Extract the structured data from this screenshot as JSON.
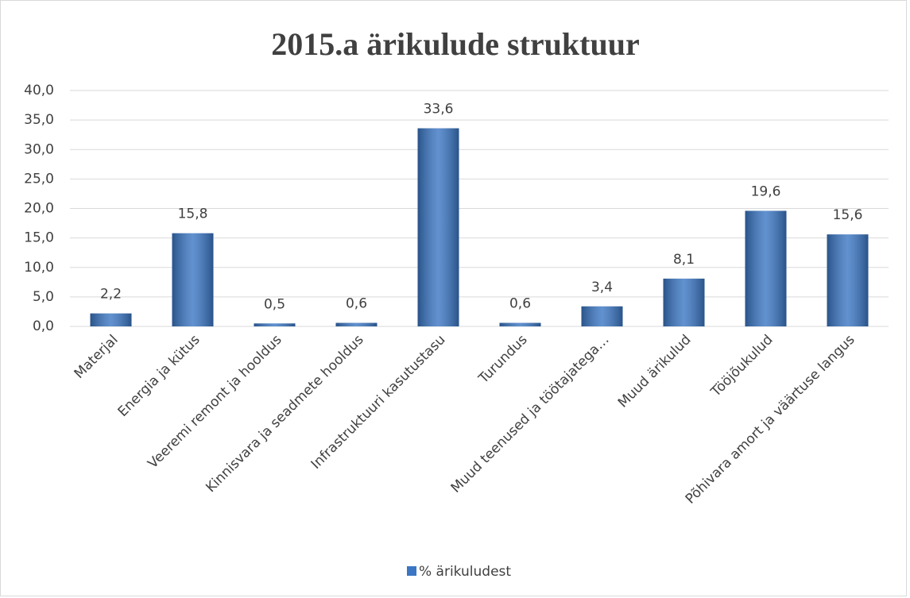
{
  "chart_data": {
    "type": "bar",
    "title": "2015.a ärikulude struktuur",
    "categories": [
      "Materjal",
      "Energia ja kütus",
      "Veeremi remont ja hooldus",
      "Kinnisvara ja seadmete hooldus",
      "Infrastruktuuri kasutustasu",
      "Turundus",
      "Muud teenused ja töötajatega…",
      "Muud ärikulud",
      "Tööjõukulud",
      "Põhivara amort ja väärtuse langus"
    ],
    "series": [
      {
        "name": "% ärikuludest",
        "color": "#3a76c4",
        "values": [
          2.2,
          15.8,
          0.5,
          0.6,
          33.6,
          0.6,
          3.4,
          8.1,
          19.6,
          15.6
        ],
        "value_labels": [
          "2,2",
          "15,8",
          "0,5",
          "0,6",
          "33,6",
          "0,6",
          "3,4",
          "8,1",
          "19,6",
          "15,6"
        ]
      }
    ],
    "ylim": [
      0,
      40
    ],
    "yticks": [
      {
        "value": 0,
        "label": "0,0"
      },
      {
        "value": 5,
        "label": "5,0"
      },
      {
        "value": 10,
        "label": "10,0"
      },
      {
        "value": 15,
        "label": "15,0"
      },
      {
        "value": 20,
        "label": "20,0"
      },
      {
        "value": 25,
        "label": "25,0"
      },
      {
        "value": 30,
        "label": "30,0"
      },
      {
        "value": 35,
        "label": "35,0"
      },
      {
        "value": 40,
        "label": "40,0"
      }
    ],
    "grid": true,
    "legend": "bottom"
  }
}
